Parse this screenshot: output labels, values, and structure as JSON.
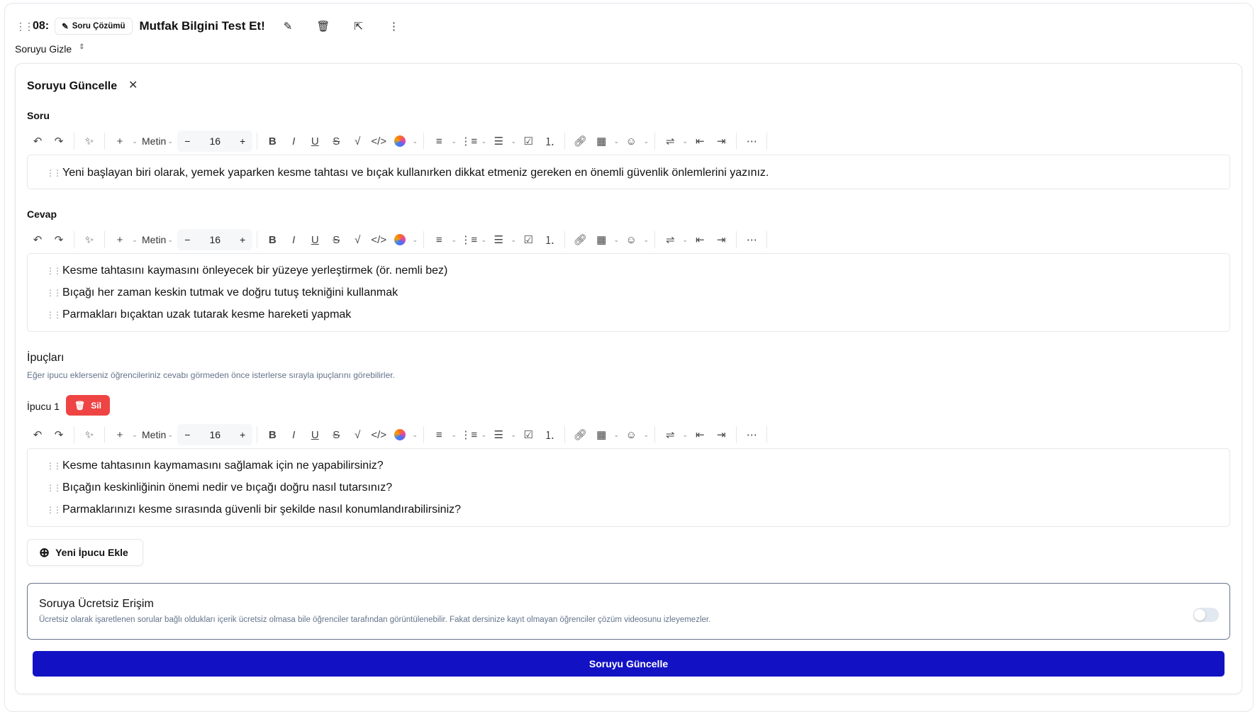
{
  "header": {
    "number": "08:",
    "chip_label": "Soru Çözümü",
    "title": "Mutfak Bilgini Test Et!",
    "toggle_label": "Soruyu Gizle"
  },
  "card": {
    "title": "Soruyu Güncelle"
  },
  "toolbar": {
    "style_label": "Metin",
    "font_size": "16"
  },
  "question": {
    "label": "Soru",
    "lines": [
      "Yeni başlayan biri olarak, yemek yaparken kesme tahtası ve bıçak kullanırken dikkat etmeniz gereken en önemli güvenlik önlemlerini yazınız."
    ]
  },
  "answer": {
    "label": "Cevap",
    "lines": [
      "Kesme tahtasını kaymasını önleyecek bir yüzeye yerleştirmek (ör. nemli bez)",
      "Bıçağı her zaman keskin tutmak ve doğru tutuş tekniğini kullanmak",
      "Parmakları bıçaktan uzak tutarak kesme hareketi yapmak"
    ]
  },
  "hints": {
    "title": "İpuçları",
    "description": "Eğer ipucu eklerseniz öğrencileriniz cevabı görmeden önce isterlerse sırayla ipuçlarını görebilirler.",
    "items": [
      {
        "label": "İpucu 1",
        "delete_label": "Sil",
        "lines": [
          "Kesme tahtasının kaymamasını sağlamak için ne yapabilirsiniz?",
          "Bıçağın keskinliğinin önemi nedir ve bıçağı doğru nasıl tutarsınız?",
          "Parmaklarınızı kesme sırasında güvenli bir şekilde nasıl konumlandırabilirsiniz?"
        ]
      }
    ],
    "add_label": "Yeni İpucu Ekle"
  },
  "free_access": {
    "title": "Soruya Ücretsiz Erişim",
    "description": "Ücretsiz olarak işaretlenen sorular bağlı oldukları içerik ücretsiz olmasa bile öğrenciler tarafından görüntülenebilir. Fakat dersinize kayıt olmayan öğrenciler çözüm videosunu izleyemezler.",
    "enabled": false
  },
  "submit_label": "Soruyu Güncelle",
  "colors": {
    "primary": "#1212c4",
    "danger": "#ef4444"
  }
}
